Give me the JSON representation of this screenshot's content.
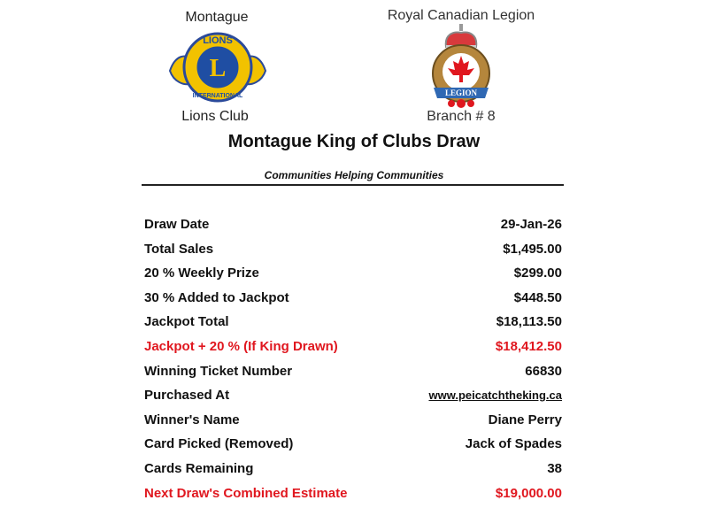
{
  "header": {
    "left": {
      "top": "Montague",
      "bottom": "Lions Club",
      "logo_text": [
        "LIONS",
        "L",
        "INTERNATIONAL"
      ]
    },
    "right": {
      "top": "Royal Canadian Legion",
      "bottom": "Branch # 8",
      "logo_text": [
        "LEGION"
      ]
    }
  },
  "title": "Montague King of Clubs Draw",
  "subtitle": "Communities Helping Communities",
  "colors": {
    "highlight": "#e0171f",
    "text": "#111111"
  },
  "rows": [
    {
      "label": "Draw Date",
      "value": "29-Jan-26"
    },
    {
      "label": "Total Sales",
      "value": "$1,495.00"
    },
    {
      "label": "20 % Weekly Prize",
      "value": "$299.00"
    },
    {
      "label": "30 % Added to Jackpot",
      "value": "$448.50"
    },
    {
      "label": "Jackpot Total",
      "value": "$18,113.50"
    },
    {
      "label": "Jackpot + 20 % (If King Drawn)",
      "value": "$18,412.50",
      "highlight": true
    },
    {
      "label": "Winning Ticket Number",
      "value": "66830"
    },
    {
      "label": "Purchased At",
      "value": "www.peicatchtheking.ca",
      "link": true
    },
    {
      "label": "Winner's Name",
      "value": "Diane Perry"
    },
    {
      "label": "Card Picked (Removed)",
      "value": "Jack of Spades"
    },
    {
      "label": "Cards Remaining",
      "value": "38"
    },
    {
      "label": "Next Draw's Combined Estimate",
      "value": "$19,000.00",
      "highlight": true
    }
  ]
}
